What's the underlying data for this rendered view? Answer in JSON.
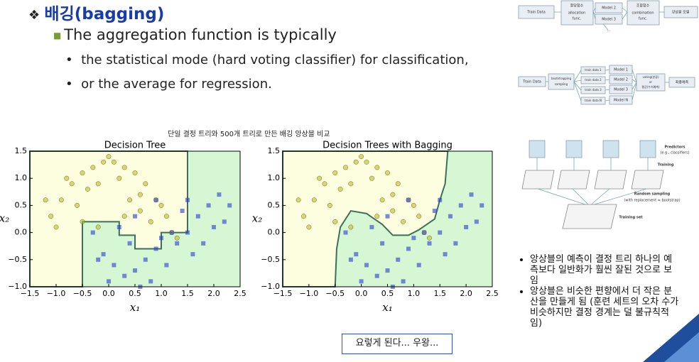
{
  "slide": {
    "title": "배깅(bagging)",
    "point": "The aggregation function is typically",
    "bullets": [
      "the statistical mode (hard voting classifier) for classification,",
      "or the average for regression."
    ],
    "caption": "단일 결정 트리와 500개 트리로 만든 배깅 앙상블 비교",
    "note": "요렇게 된다... 우왕...",
    "remarks": [
      "앙상블의 예측이 결정 트리 하나의 예측보다 일반화가 훨씬 잘된 것으로 보임",
      "앙상블은 비슷한 편향에서 더 작은 분산을 만들게 됨 (훈련 세트의 오차 수가 비슷하지만 결정 경계는 덜 불규칙적임)"
    ]
  },
  "diagrams": {
    "ensemble": {
      "input": "Train Data",
      "alloc": [
        "할당함수",
        "allocation",
        "func."
      ],
      "models": [
        "Model 2",
        "Model 3",
        "..."
      ],
      "combine": [
        "조합함수",
        "combination",
        "func."
      ],
      "output": "앙상블 모델"
    },
    "bagging": {
      "input": "Train Data",
      "sampler": [
        "bootstrapping",
        "sampling"
      ],
      "subsets": [
        "train data 1",
        "train data 2",
        "train data 3",
        "train data N"
      ],
      "models": [
        "Model 1",
        "Model 2",
        "Model 3",
        "Model N"
      ],
      "vote": [
        "voting(분류)",
        "or",
        "평균(수치예측)"
      ],
      "output": "최종예측"
    },
    "sampling": {
      "predictors": [
        "Predictors",
        "(e.g., classifiers)"
      ],
      "training": "Training",
      "random": [
        "Random sampling",
        "(with replacement = bootstrap)"
      ],
      "set": "Training set"
    }
  },
  "chart_data": [
    {
      "type": "scatter",
      "title": "Decision Tree",
      "xlabel": "x₁",
      "ylabel": "x₂",
      "xlim": [
        -1.5,
        2.5
      ],
      "ylim": [
        -1,
        1.5
      ],
      "xticks": [
        {
          "value": -1.5,
          "label": "−1.5"
        },
        {
          "value": -1,
          "label": "−1.0"
        },
        {
          "value": -0.5,
          "label": "−0.5"
        },
        {
          "value": 0,
          "label": "0.0"
        },
        0.5,
        {
          "value": 1,
          "label": "1.0"
        },
        1.5,
        {
          "value": 2,
          "label": "2.0"
        },
        2.5
      ],
      "yticks": [
        {
          "value": -1,
          "label": "−1.0"
        },
        {
          "value": -0.5,
          "label": "−0.5"
        },
        {
          "value": 0,
          "label": "0.0"
        },
        0.5,
        {
          "value": 1,
          "label": "1.0"
        },
        1.5
      ],
      "series": [
        {
          "color": "#bcbc2a",
          "marker": "circle",
          "x": [
            -1.1,
            -0.9,
            -0.7,
            -0.5,
            -0.3,
            -0.1,
            0.1,
            0.3,
            0.5,
            0.7,
            0.9,
            1.1,
            -1.0,
            -0.6,
            -0.2,
            0.2,
            0.6,
            1.0,
            -0.8,
            -0.4,
            0.0,
            0.4,
            0.8,
            -1.2,
            1.2,
            0.3,
            -0.5,
            0.6,
            -0.2,
            1.3
          ],
          "y": [
            0.3,
            0.6,
            0.9,
            1.1,
            1.2,
            1.3,
            1.3,
            1.2,
            1.1,
            0.9,
            0.6,
            0.3,
            0.1,
            0.5,
            0.9,
            1.0,
            0.7,
            0.5,
            1.0,
            0.8,
            1.4,
            0.6,
            0.2,
            0.6,
            0.0,
            0.3,
            0.2,
            0.4,
            0.1,
            -0.1
          ]
        },
        {
          "color": "#2a3bd6",
          "marker": "square",
          "x": [
            -0.3,
            -0.1,
            0.1,
            0.3,
            0.5,
            0.7,
            0.9,
            1.1,
            1.3,
            1.5,
            1.7,
            1.9,
            2.1,
            2.2,
            0.0,
            0.4,
            0.8,
            1.2,
            1.6,
            2.0,
            0.2,
            0.6,
            1.0,
            1.4,
            1.8,
            -0.2,
            0.5,
            1.5,
            2.3,
            0.9
          ],
          "y": [
            0.0,
            -0.4,
            -0.6,
            -0.8,
            -0.7,
            -0.5,
            -0.3,
            -0.6,
            -0.2,
            0.0,
            0.3,
            0.5,
            0.7,
            0.2,
            -0.9,
            -0.2,
            -0.9,
            0.0,
            -0.4,
            0.1,
            0.1,
            -1.0,
            -0.1,
            0.4,
            -0.2,
            -0.5,
            0.3,
            0.6,
            0.5,
            0.6
          ]
        }
      ]
    },
    {
      "type": "scatter",
      "title": "Decision Trees with Bagging",
      "xlabel": "x₁",
      "ylabel": "x₂",
      "xlim": [
        -1.5,
        2.5
      ],
      "ylim": [
        -1,
        1.5
      ],
      "xticks": [
        {
          "value": -1.5,
          "label": "−1.5"
        },
        {
          "value": -1,
          "label": "−1.0"
        },
        {
          "value": -0.5,
          "label": "−0.5"
        },
        {
          "value": 0,
          "label": "0.0"
        },
        0.5,
        {
          "value": 1,
          "label": "1.0"
        },
        1.5,
        {
          "value": 2,
          "label": "2.0"
        },
        2.5
      ],
      "yticks": [
        {
          "value": -1,
          "label": "−1.0"
        },
        {
          "value": -0.5,
          "label": "−0.5"
        },
        {
          "value": 0,
          "label": "0.0"
        },
        0.5,
        {
          "value": 1,
          "label": "1.0"
        },
        1.5
      ],
      "series": [
        {
          "color": "#bcbc2a",
          "marker": "circle",
          "x": [
            -1.1,
            -0.9,
            -0.7,
            -0.5,
            -0.3,
            -0.1,
            0.1,
            0.3,
            0.5,
            0.7,
            0.9,
            1.1,
            -1.0,
            -0.6,
            -0.2,
            0.2,
            0.6,
            1.0,
            -0.8,
            -0.4,
            0.0,
            0.4,
            0.8,
            -1.2,
            1.2,
            0.3,
            -0.5,
            0.6,
            -0.2,
            1.3
          ],
          "y": [
            0.3,
            0.6,
            0.9,
            1.1,
            1.2,
            1.3,
            1.3,
            1.2,
            1.1,
            0.9,
            0.6,
            0.3,
            0.1,
            0.5,
            0.9,
            1.0,
            0.7,
            0.5,
            1.0,
            0.8,
            1.4,
            0.6,
            0.2,
            0.6,
            0.0,
            0.3,
            0.2,
            0.4,
            0.1,
            -0.1
          ]
        },
        {
          "color": "#2a3bd6",
          "marker": "square",
          "x": [
            -0.3,
            -0.1,
            0.1,
            0.3,
            0.5,
            0.7,
            0.9,
            1.1,
            1.3,
            1.5,
            1.7,
            1.9,
            2.1,
            2.2,
            0.0,
            0.4,
            0.8,
            1.2,
            1.6,
            2.0,
            0.2,
            0.6,
            1.0,
            1.4,
            1.8,
            -0.2,
            0.5,
            1.5,
            2.3,
            0.9
          ],
          "y": [
            0.0,
            -0.4,
            -0.6,
            -0.8,
            -0.7,
            -0.5,
            -0.3,
            -0.6,
            -0.2,
            0.0,
            0.3,
            0.5,
            0.7,
            0.2,
            -0.9,
            -0.2,
            -0.9,
            0.0,
            -0.4,
            0.1,
            0.1,
            -1.0,
            -0.1,
            0.4,
            -0.2,
            -0.5,
            0.3,
            0.6,
            0.5,
            0.6
          ]
        }
      ]
    }
  ]
}
